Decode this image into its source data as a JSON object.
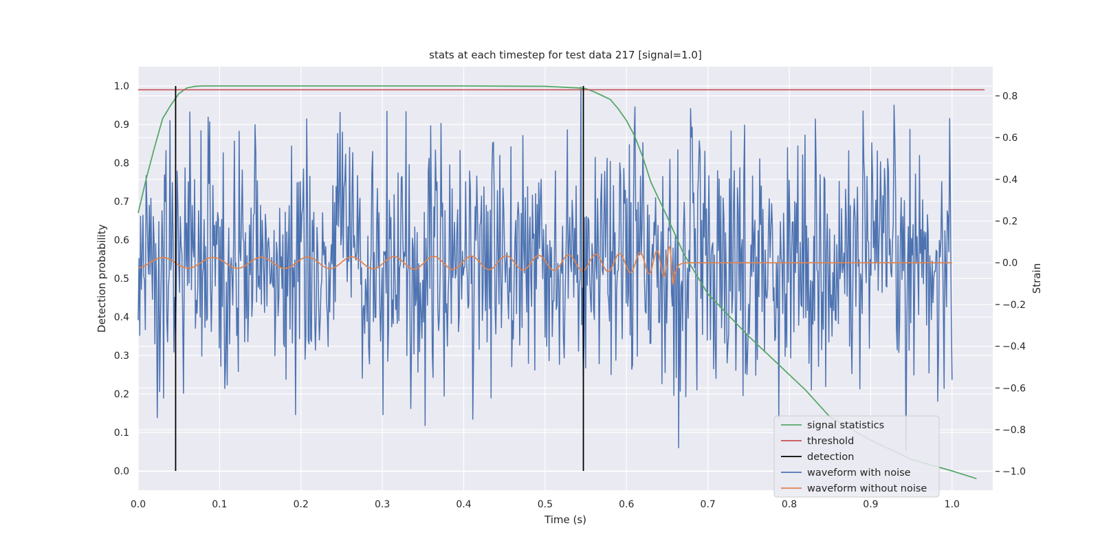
{
  "chart_data": {
    "type": "line",
    "title": "stats at each timestep for test data 217 [signal=1.0]",
    "xlabel": "Time (s)",
    "ylabel_left": "Detection probability",
    "ylabel_right": "Strain",
    "xlim": [
      0.0,
      1.05
    ],
    "ylim_left": [
      -0.05,
      1.05
    ],
    "ylim_right": [
      -1.09,
      0.94
    ],
    "x_ticks": [
      "0.0",
      "0.1",
      "0.2",
      "0.3",
      "0.4",
      "0.5",
      "0.6",
      "0.7",
      "0.8",
      "0.9",
      "1.0"
    ],
    "y_left_ticks": [
      "0.0",
      "0.1",
      "0.2",
      "0.3",
      "0.4",
      "0.5",
      "0.6",
      "0.7",
      "0.8",
      "0.9",
      "1.0"
    ],
    "y_right_ticks": [
      "−1.0",
      "−0.8",
      "−0.6",
      "−0.4",
      "−0.2",
      "0.0",
      "0.2",
      "0.4",
      "0.6",
      "0.8"
    ],
    "grid": true,
    "legend_position": "lower-right",
    "colors": {
      "signal_statistics": "#55a868",
      "threshold": "#c44e52",
      "detection": "#000000",
      "waveform_with_noise": "#4c72b0",
      "waveform_without_noise": "#dd8452",
      "plot_background": "#eaeaf2",
      "grid": "#ffffff"
    },
    "series": [
      {
        "name": "signal statistics",
        "axis": "left",
        "x": [
          0.0,
          0.01,
          0.02,
          0.03,
          0.04,
          0.05,
          0.06,
          0.07,
          0.08,
          0.1,
          0.2,
          0.3,
          0.4,
          0.5,
          0.54,
          0.55,
          0.56,
          0.57,
          0.58,
          0.59,
          0.6,
          0.61,
          0.62,
          0.63,
          0.65,
          0.67,
          0.7,
          0.75,
          0.8,
          0.82,
          0.85,
          0.9,
          0.95,
          1.0,
          1.03
        ],
        "y": [
          0.67,
          0.76,
          0.84,
          0.915,
          0.95,
          0.98,
          0.995,
          0.999,
          1.0,
          1.0,
          1.0,
          1.0,
          1.0,
          0.999,
          0.995,
          0.993,
          0.985,
          0.975,
          0.965,
          0.94,
          0.91,
          0.87,
          0.815,
          0.75,
          0.66,
          0.565,
          0.46,
          0.35,
          0.25,
          0.21,
          0.14,
          0.08,
          0.03,
          0.0,
          -0.02
        ]
      },
      {
        "name": "threshold",
        "axis": "left",
        "x": [
          0.0,
          1.04
        ],
        "y": [
          0.99,
          0.99
        ]
      },
      {
        "name": "detection",
        "axis": "left",
        "x_positions": [
          0.046,
          0.547
        ],
        "y": [
          0.0,
          1.0
        ]
      },
      {
        "name": "waveform with noise",
        "axis": "right",
        "x_range": [
          0.0,
          1.0
        ],
        "amplitude_range": [
          -1.0,
          0.88
        ],
        "std": 0.3
      },
      {
        "name": "waveform without noise",
        "axis": "right",
        "x_range": [
          0.0,
          1.0
        ],
        "chirp_merger_time": 0.66,
        "amplitude_start": 0.025,
        "amplitude_peak": 0.12
      }
    ],
    "legend": [
      {
        "label": "signal statistics",
        "key": "signal_statistics"
      },
      {
        "label": "threshold",
        "key": "threshold"
      },
      {
        "label": "detection",
        "key": "detection"
      },
      {
        "label": "waveform with noise",
        "key": "waveform_with_noise"
      },
      {
        "label": "waveform without noise",
        "key": "waveform_without_noise"
      }
    ]
  }
}
